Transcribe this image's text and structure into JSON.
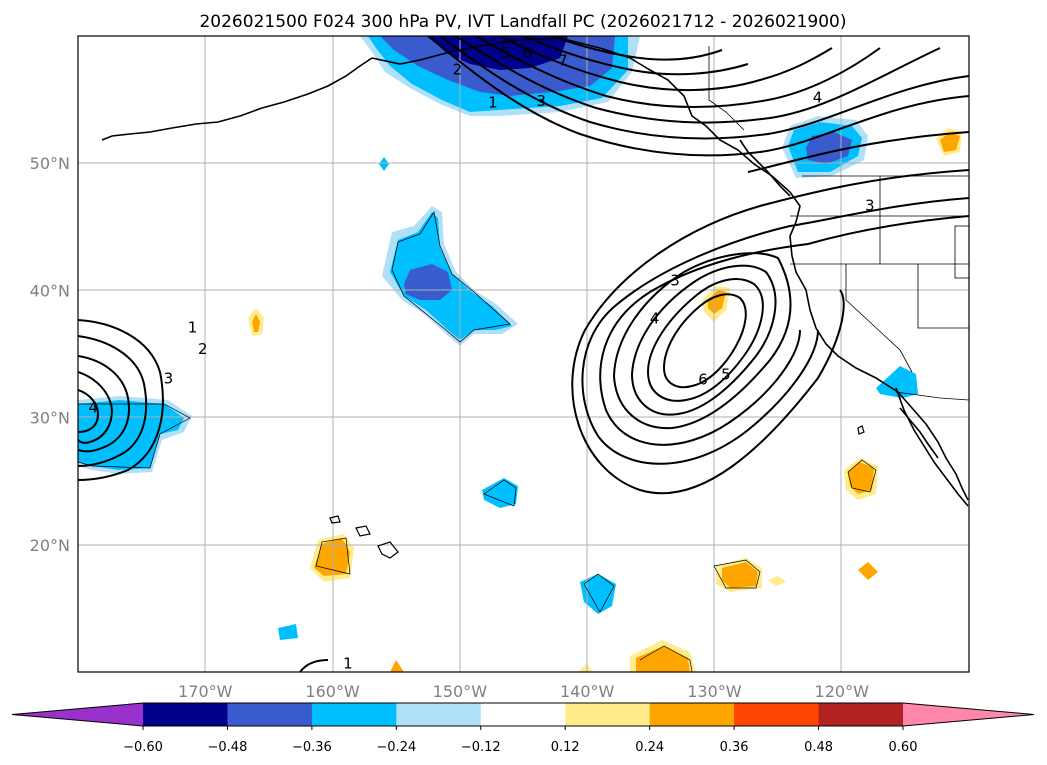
{
  "title": "2026021500 F024 300 hPa PV, IVT Landfall PC (2026021712 - 2026021900)",
  "map": {
    "lon_range": [
      -180,
      -110
    ],
    "lat_range": [
      10,
      60
    ],
    "lat_ticks": [
      {
        "value": 50,
        "label": "50°N"
      },
      {
        "value": 40,
        "label": "40°N"
      },
      {
        "value": 30,
        "label": "30°N"
      },
      {
        "value": 20,
        "label": "20°N"
      }
    ],
    "lon_ticks": [
      {
        "value": -170,
        "label": "170°W"
      },
      {
        "value": -160,
        "label": "160°W"
      },
      {
        "value": -150,
        "label": "150°W"
      },
      {
        "value": -140,
        "label": "140°W"
      },
      {
        "value": -130,
        "label": "130°W"
      },
      {
        "value": -120,
        "label": "120°W"
      }
    ],
    "grid": true
  },
  "colorbar": {
    "labels": [
      "−0.60",
      "−0.48",
      "−0.36",
      "−0.24",
      "−0.12",
      "0.12",
      "0.24",
      "0.36",
      "0.48",
      "0.60"
    ],
    "colors": [
      "#9932cc",
      "#00008b",
      "#3a5bcd",
      "#00bfff",
      "#b0e0f8",
      "#ffffff",
      "#ffec8b",
      "#ffa500",
      "#ff4500",
      "#b22222",
      "#ff88aa"
    ],
    "extend": "both"
  },
  "contour_labels": [
    {
      "text": "1",
      "lon": -171.0,
      "lat": 37.0
    },
    {
      "text": "2",
      "lon": -170.2,
      "lat": 35.3
    },
    {
      "text": "3",
      "lon": -172.9,
      "lat": 33.0
    },
    {
      "text": "4",
      "lon": -178.8,
      "lat": 30.7
    },
    {
      "text": "3",
      "lon": -133.1,
      "lat": 40.7
    },
    {
      "text": "4",
      "lon": -134.7,
      "lat": 37.7
    },
    {
      "text": "6",
      "lon": -130.9,
      "lat": 32.9
    },
    {
      "text": "5",
      "lon": -129.1,
      "lat": 33.3
    },
    {
      "text": "1",
      "lon": -147.4,
      "lat": 54.7
    },
    {
      "text": "2",
      "lon": -150.2,
      "lat": 57.3
    },
    {
      "text": "3",
      "lon": -143.6,
      "lat": 54.8
    },
    {
      "text": "5",
      "lon": -146.4,
      "lat": 58.6
    },
    {
      "text": "6",
      "lon": -144.7,
      "lat": 58.6
    },
    {
      "text": "7",
      "lon": -141.9,
      "lat": 58.0
    },
    {
      "text": "4",
      "lon": -121.9,
      "lat": 55.1
    },
    {
      "text": "3",
      "lon": -117.8,
      "lat": 46.6
    },
    {
      "text": "1",
      "lon": -158.8,
      "lat": 10.6
    }
  ]
}
